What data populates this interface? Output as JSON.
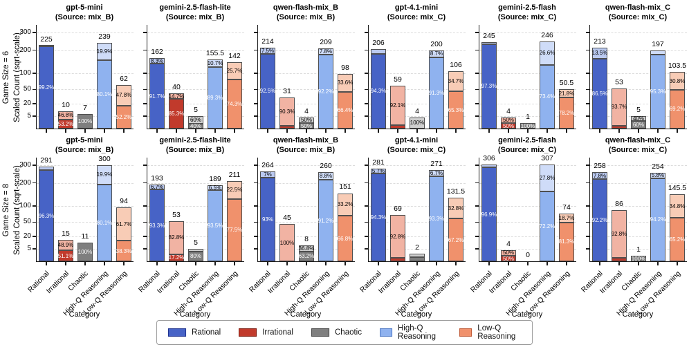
{
  "figure": {
    "row_labels": [
      {
        "line1": "Game Size = 6",
        "line2": "Scaled Count (sqrt-scale)"
      },
      {
        "line1": "Game Size = 8",
        "line2": "Scaled Count (sqrt-scale)"
      }
    ],
    "xlabel": "Category",
    "yticks": [
      5,
      20,
      50,
      100,
      200,
      300
    ],
    "categories": [
      "Rational",
      "Irrational",
      "Chaotic",
      "High-Q Reasoning",
      "Low-Q Reasoning"
    ],
    "legend": [
      {
        "label": "Rational",
        "fill": "#4763c6",
        "edge": "#20338f",
        "light": "#bac9f0"
      },
      {
        "label": "Irrational",
        "fill": "#c13a2c",
        "edge": "#7e1c10",
        "light": "#f1b3a3"
      },
      {
        "label": "Chaotic",
        "fill": "#7f7f7f",
        "edge": "#474747",
        "light": "#cfcfcf"
      },
      {
        "label": "High-Q Reasoning",
        "fill": "#8fb2ef",
        "edge": "#4f79c4",
        "light": "#cfdcf8"
      },
      {
        "label": "Low-Q Reasoning",
        "fill": "#f0916c",
        "edge": "#c05a36",
        "light": "#f8ccb6"
      }
    ]
  },
  "chart_data": [
    {
      "type": "bar",
      "row": 0,
      "col": 0,
      "title": "gpt-5-mini",
      "subtitle": "(Source: mix_B)",
      "bars": [
        {
          "total": 225,
          "total_label": "225",
          "solid_pct": 99.2,
          "solid_label": "99.2%",
          "light_pct": 0.8,
          "light_label": ""
        },
        {
          "total": 10,
          "total_label": "10",
          "solid_pct": 53.2,
          "solid_label": "53.2%",
          "light_pct": 46.8,
          "light_label": "46.8%"
        },
        {
          "total": 7,
          "total_label": "7",
          "solid_pct": 100,
          "solid_label": "100%",
          "light_pct": 0,
          "light_label": ""
        },
        {
          "total": 239,
          "total_label": "239",
          "solid_pct": 80.1,
          "solid_label": "80.1%",
          "light_pct": 19.9,
          "light_label": "19.9%"
        },
        {
          "total": 62,
          "total_label": "62",
          "solid_pct": 52.2,
          "solid_label": "52.2%",
          "light_pct": 47.8,
          "light_label": "47.8%"
        }
      ]
    },
    {
      "type": "bar",
      "row": 0,
      "col": 1,
      "title": "gemini-2.5-flash-lite",
      "subtitle": "(Source: mix_B)",
      "bars": [
        {
          "total": 162,
          "total_label": "162",
          "solid_pct": 91.7,
          "solid_label": "91.7%",
          "light_pct": 8.3,
          "light_label": "8.3%"
        },
        {
          "total": 40,
          "total_label": "40",
          "solid_pct": 85.3,
          "solid_label": "85.3%",
          "light_pct": 14.7,
          "light_label": "14.7%"
        },
        {
          "total": 5,
          "total_label": "5",
          "solid_pct": 40,
          "solid_label": "40%",
          "light_pct": 60,
          "light_label": "60%"
        },
        {
          "total": 155.5,
          "total_label": "155.5",
          "solid_pct": 89.3,
          "solid_label": "89.3%",
          "light_pct": 10.7,
          "light_label": "10.7%"
        },
        {
          "total": 142,
          "total_label": "142",
          "solid_pct": 74.3,
          "solid_label": "74.3%",
          "light_pct": 25.7,
          "light_label": "25.7%"
        }
      ]
    },
    {
      "type": "bar",
      "row": 0,
      "col": 2,
      "title": "qwen-flash-mix_B",
      "subtitle": "(Source: mix_B)",
      "bars": [
        {
          "total": 214,
          "total_label": "214",
          "solid_pct": 92.5,
          "solid_label": "92.5%",
          "light_pct": 7.5,
          "light_label": "7.5%"
        },
        {
          "total": 31,
          "total_label": "31",
          "solid_pct": 9.7,
          "solid_label": "",
          "light_pct": 90.3,
          "light_label": "90.3%"
        },
        {
          "total": 4,
          "total_label": "4",
          "solid_pct": 50,
          "solid_label": "50%",
          "light_pct": 50,
          "light_label": "50%"
        },
        {
          "total": 209,
          "total_label": "209",
          "solid_pct": 92.2,
          "solid_label": "92.2%",
          "light_pct": 7.8,
          "light_label": "7.8%"
        },
        {
          "total": 98,
          "total_label": "98",
          "solid_pct": 66.4,
          "solid_label": "66.4%",
          "light_pct": 33.6,
          "light_label": "33.6%"
        }
      ]
    },
    {
      "type": "bar",
      "row": 0,
      "col": 3,
      "title": "gpt-4.1-mini",
      "subtitle": "(Source: mix_C)",
      "bars": [
        {
          "total": 206,
          "total_label": "206",
          "solid_pct": 94.3,
          "solid_label": "94.3%",
          "light_pct": 5.7,
          "light_label": ""
        },
        {
          "total": 59,
          "total_label": "59",
          "solid_pct": 7.9,
          "solid_label": "",
          "light_pct": 92.1,
          "light_label": "92.1%"
        },
        {
          "total": 4,
          "total_label": "4",
          "solid_pct": 0,
          "solid_label": "",
          "light_pct": 100,
          "light_label": "100%"
        },
        {
          "total": 200,
          "total_label": "200",
          "solid_pct": 91.3,
          "solid_label": "91.3%",
          "light_pct": 8.7,
          "light_label": "8.7%"
        },
        {
          "total": 106,
          "total_label": "106",
          "solid_pct": 65.3,
          "solid_label": "65.3%",
          "light_pct": 34.7,
          "light_label": "34.7%"
        }
      ]
    },
    {
      "type": "bar",
      "row": 0,
      "col": 4,
      "title": "gemini-2.5-flash",
      "subtitle": "(Source: mix_C)",
      "bars": [
        {
          "total": 245,
          "total_label": "245",
          "solid_pct": 97.3,
          "solid_label": "97.3%",
          "light_pct": 2.7,
          "light_label": ""
        },
        {
          "total": 4,
          "total_label": "4",
          "solid_pct": 50,
          "solid_label": "50%",
          "light_pct": 50,
          "light_label": "50%"
        },
        {
          "total": 1,
          "total_label": "1",
          "solid_pct": 100,
          "solid_label": "100%",
          "light_pct": 0,
          "light_label": ""
        },
        {
          "total": 246,
          "total_label": "246",
          "solid_pct": 73.4,
          "solid_label": "73.4%",
          "light_pct": 26.6,
          "light_label": "26.6%"
        },
        {
          "total": 50.5,
          "total_label": "50.5",
          "solid_pct": 78.2,
          "solid_label": "78.2%",
          "light_pct": 21.8,
          "light_label": "21.8%"
        }
      ]
    },
    {
      "type": "bar",
      "row": 0,
      "col": 5,
      "title": "qwen-flash-mix_C",
      "subtitle": "(Source: mix_C)",
      "bars": [
        {
          "total": 213,
          "total_label": "213",
          "solid_pct": 86.5,
          "solid_label": "86.5%",
          "light_pct": 13.5,
          "light_label": "13.5%"
        },
        {
          "total": 53,
          "total_label": "53",
          "solid_pct": 6.3,
          "solid_label": "",
          "light_pct": 93.7,
          "light_label": "93.7%"
        },
        {
          "total": 5,
          "total_label": "5",
          "solid_pct": 60,
          "solid_label": "60%",
          "light_pct": 40,
          "light_label": "40%"
        },
        {
          "total": 197,
          "total_label": "197",
          "solid_pct": 95.3,
          "solid_label": "95.3%",
          "light_pct": 4.7,
          "light_label": ""
        },
        {
          "total": 103.5,
          "total_label": "103.5",
          "solid_pct": 69.2,
          "solid_label": "69.2%",
          "light_pct": 30.8,
          "light_label": "30.8%"
        }
      ]
    },
    {
      "type": "bar",
      "row": 1,
      "col": 0,
      "title": "gpt-5-mini",
      "subtitle": "(Source: mix_B)",
      "bars": [
        {
          "total": 291,
          "total_label": "291",
          "solid_pct": 96.3,
          "solid_label": "96.3%",
          "light_pct": 3.7,
          "light_label": ""
        },
        {
          "total": 15,
          "total_label": "15",
          "solid_pct": 51.1,
          "solid_label": "51.1%",
          "light_pct": 48.9,
          "light_label": "48.9%"
        },
        {
          "total": 11,
          "total_label": "11",
          "solid_pct": 100,
          "solid_label": "100%",
          "light_pct": 0,
          "light_label": ""
        },
        {
          "total": 300,
          "total_label": "300",
          "solid_pct": 80.1,
          "solid_label": "80.1%",
          "light_pct": 19.9,
          "light_label": "19.9%"
        },
        {
          "total": 94,
          "total_label": "94",
          "solid_pct": 38.3,
          "solid_label": "38.3%",
          "light_pct": 61.7,
          "light_label": "61.7%"
        }
      ]
    },
    {
      "type": "bar",
      "row": 1,
      "col": 1,
      "title": "gemini-2.5-flash-lite",
      "subtitle": "(Source: mix_B)",
      "bars": [
        {
          "total": 193,
          "total_label": "193",
          "solid_pct": 93.3,
          "solid_label": "93.3%",
          "light_pct": 6.7,
          "light_label": "6.7%"
        },
        {
          "total": 53,
          "total_label": "53",
          "solid_pct": 17.2,
          "solid_label": "17.2%",
          "light_pct": 82.8,
          "light_label": "82.8%"
        },
        {
          "total": 5,
          "total_label": "5",
          "solid_pct": 80,
          "solid_label": "80%",
          "light_pct": 20,
          "light_label": ""
        },
        {
          "total": 189,
          "total_label": "189",
          "solid_pct": 93.5,
          "solid_label": "93.5%",
          "light_pct": 6.5,
          "light_label": "6.5%"
        },
        {
          "total": 211,
          "total_label": "211",
          "solid_pct": 77.5,
          "solid_label": "77.5%",
          "light_pct": 22.5,
          "light_label": "22.5%"
        }
      ]
    },
    {
      "type": "bar",
      "row": 1,
      "col": 2,
      "title": "qwen-flash-mix_B",
      "subtitle": "(Source: mix_B)",
      "bars": [
        {
          "total": 264,
          "total_label": "264",
          "solid_pct": 93,
          "solid_label": "93%",
          "light_pct": 7,
          "light_label": "7%"
        },
        {
          "total": 45,
          "total_label": "45",
          "solid_pct": 0,
          "solid_label": "",
          "light_pct": 100,
          "light_label": "100%"
        },
        {
          "total": 8,
          "total_label": "8",
          "solid_pct": 63.2,
          "solid_label": "63.2%",
          "light_pct": 36.8,
          "light_label": "36.8%"
        },
        {
          "total": 260,
          "total_label": "260",
          "solid_pct": 91.2,
          "solid_label": "91.2%",
          "light_pct": 8.8,
          "light_label": "8.8%"
        },
        {
          "total": 151,
          "total_label": "151",
          "solid_pct": 66.8,
          "solid_label": "66.8%",
          "light_pct": 33.2,
          "light_label": "33.2%"
        }
      ]
    },
    {
      "type": "bar",
      "row": 1,
      "col": 3,
      "title": "gpt-4.1-mini",
      "subtitle": "(Source: mix_C)",
      "bars": [
        {
          "total": 281,
          "total_label": "281",
          "solid_pct": 94.3,
          "solid_label": "94.3%",
          "light_pct": 5.7,
          "light_label": "5.7%"
        },
        {
          "total": 69,
          "total_label": "69",
          "solid_pct": 7.2,
          "solid_label": "",
          "light_pct": 92.8,
          "light_label": "92.8%"
        },
        {
          "total": 2,
          "total_label": "2",
          "solid_pct": 50,
          "solid_label": "",
          "light_pct": 50,
          "light_label": ""
        },
        {
          "total": 271,
          "total_label": "271",
          "solid_pct": 93.3,
          "solid_label": "93.3%",
          "light_pct": 6.7,
          "light_label": "6.7%"
        },
        {
          "total": 131.5,
          "total_label": "131.5",
          "solid_pct": 67.2,
          "solid_label": "67.2%",
          "light_pct": 32.8,
          "light_label": "32.8%"
        }
      ]
    },
    {
      "type": "bar",
      "row": 1,
      "col": 4,
      "title": "gemini-2.5-flash",
      "subtitle": "(Source: mix_C)",
      "bars": [
        {
          "total": 306,
          "total_label": "306",
          "solid_pct": 96.9,
          "solid_label": "96.9%",
          "light_pct": 3.1,
          "light_label": ""
        },
        {
          "total": 4,
          "total_label": "4",
          "solid_pct": 50,
          "solid_label": "50%",
          "light_pct": 50,
          "light_label": "50%"
        },
        {
          "total": 0,
          "total_label": "0",
          "solid_pct": 0,
          "solid_label": "",
          "light_pct": 0,
          "light_label": ""
        },
        {
          "total": 307,
          "total_label": "307",
          "solid_pct": 72.2,
          "solid_label": "72.2%",
          "light_pct": 27.8,
          "light_label": "27.8%"
        },
        {
          "total": 74,
          "total_label": "74",
          "solid_pct": 81.3,
          "solid_label": "81.3%",
          "light_pct": 18.7,
          "light_label": "18.7%"
        }
      ]
    },
    {
      "type": "bar",
      "row": 1,
      "col": 5,
      "title": "qwen-flash-mix_C",
      "subtitle": "(Source: mix_C)",
      "bars": [
        {
          "total": 258,
          "total_label": "258",
          "solid_pct": 92.2,
          "solid_label": "92.2%",
          "light_pct": 7.8,
          "light_label": "7.8%"
        },
        {
          "total": 86,
          "total_label": "86",
          "solid_pct": 7.2,
          "solid_label": "",
          "light_pct": 92.8,
          "light_label": "92.8%"
        },
        {
          "total": 1,
          "total_label": "1",
          "solid_pct": 100,
          "solid_label": "100%",
          "light_pct": 0,
          "light_label": ""
        },
        {
          "total": 254,
          "total_label": "254",
          "solid_pct": 94.2,
          "solid_label": "94.2%",
          "light_pct": 5.8,
          "light_label": "5.8%"
        },
        {
          "total": 145.5,
          "total_label": "145.5",
          "solid_pct": 65.2,
          "solid_label": "65.2%",
          "light_pct": 34.8,
          "light_label": "34.8%"
        }
      ]
    }
  ]
}
